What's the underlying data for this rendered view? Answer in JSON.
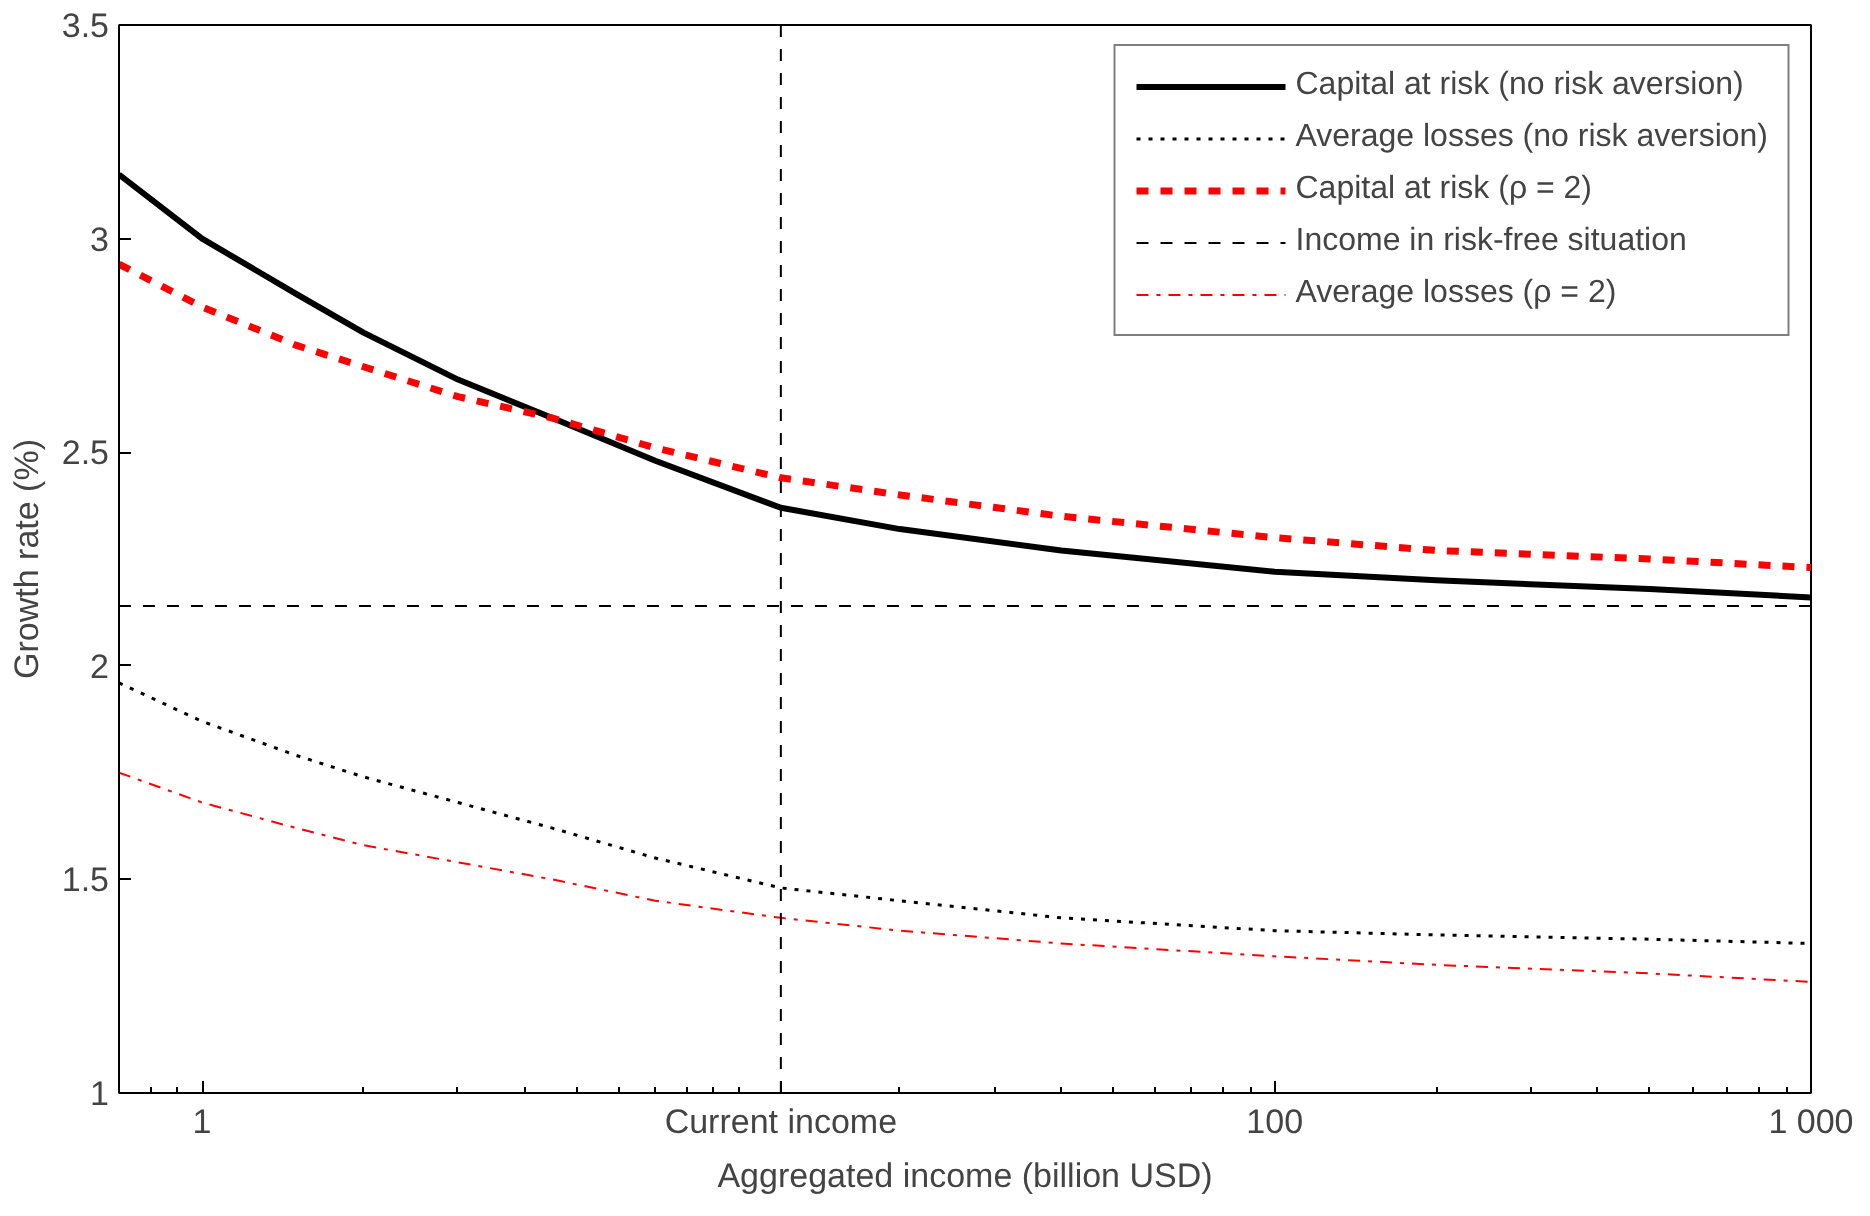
{
  "chart_data": {
    "type": "line",
    "xlabel": "Aggregated income (billion USD)",
    "ylabel": "Growth rate (%)",
    "log": "x",
    "x": [
      0.7,
      1,
      1.5,
      2,
      3,
      4.5,
      7,
      12,
      20,
      40,
      100,
      200,
      500,
      1000
    ],
    "xlim": [
      0.7,
      1000
    ],
    "ylim": [
      1,
      3.5
    ],
    "xticks": [
      1,
      {
        "value": 12,
        "label": "Current income"
      },
      100,
      {
        "value": 1000,
        "label": "1 000"
      }
    ],
    "yticks": [
      1,
      1.5,
      2,
      2.5,
      3,
      3.5
    ],
    "grid": false,
    "legend": "top right",
    "series": [
      {
        "name": "Capital at risk (no risk aversion)",
        "color": "#000000",
        "line_style": "solid",
        "values": [
          3.15,
          3.0,
          2.87,
          2.78,
          2.67,
          2.58,
          2.48,
          2.37,
          2.32,
          2.27,
          2.22,
          2.2,
          2.18,
          2.16
        ]
      },
      {
        "name": "Average losses (no risk aversion)",
        "color": "#000000",
        "line_style": "dotted",
        "values": [
          1.96,
          1.87,
          1.79,
          1.74,
          1.68,
          1.62,
          1.55,
          1.48,
          1.45,
          1.41,
          1.38,
          1.37,
          1.36,
          1.35
        ]
      },
      {
        "name": "Capital at risk (ρ = 2)",
        "color": "#ff0000",
        "line_style": "dashed",
        "values": [
          2.94,
          2.84,
          2.75,
          2.7,
          2.63,
          2.58,
          2.51,
          2.44,
          2.4,
          2.35,
          2.3,
          2.27,
          2.25,
          2.23
        ]
      },
      {
        "name": "Average losses (ρ = 2)",
        "color": "#ff0000",
        "line_style": "dashdot",
        "values": [
          1.75,
          1.68,
          1.62,
          1.58,
          1.54,
          1.5,
          1.45,
          1.41,
          1.38,
          1.35,
          1.32,
          1.3,
          1.28,
          1.26
        ]
      }
    ],
    "ref_lines": [
      {
        "axis": "y",
        "value": 2.14,
        "label": "Income in risk-free situation",
        "color": "#000000",
        "line_style": "dashed"
      },
      {
        "axis": "x",
        "value": 12,
        "label": null,
        "color": "#000000",
        "line_style": "dashed"
      }
    ]
  }
}
